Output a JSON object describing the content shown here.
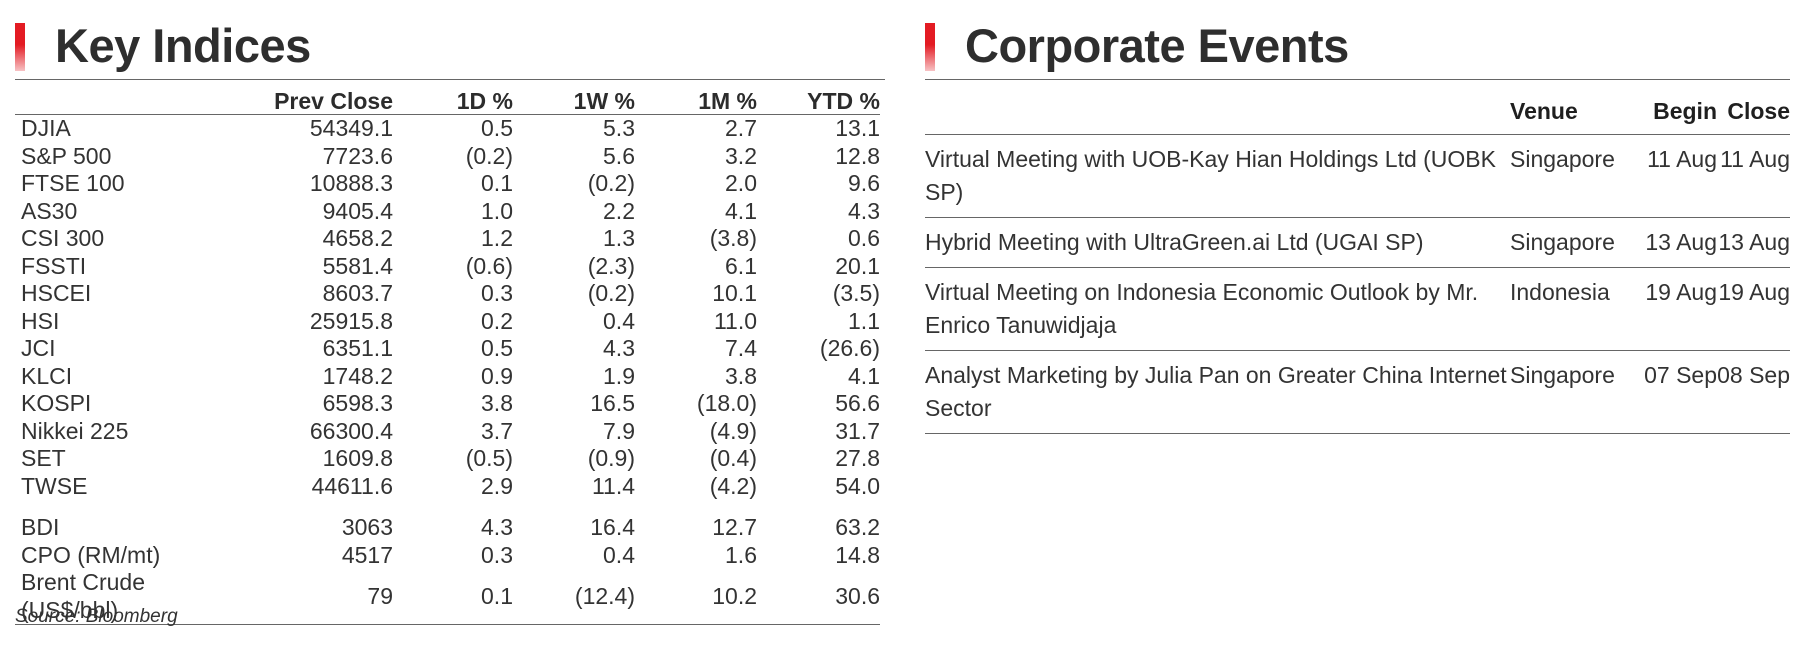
{
  "key_indices": {
    "title": "Key Indices",
    "columns": [
      "",
      "Prev Close",
      "1D %",
      "1W %",
      "1M %",
      "YTD %"
    ],
    "rows": [
      {
        "name": "DJIA",
        "prev_close": "54349.1",
        "d1": "0.5",
        "w1": "5.3",
        "m1": "2.7",
        "ytd": "13.1"
      },
      {
        "name": "S&P 500",
        "prev_close": "7723.6",
        "d1": "(0.2)",
        "w1": "5.6",
        "m1": "3.2",
        "ytd": "12.8"
      },
      {
        "name": "FTSE 100",
        "prev_close": "10888.3",
        "d1": "0.1",
        "w1": "(0.2)",
        "m1": "2.0",
        "ytd": "9.6"
      },
      {
        "name": "AS30",
        "prev_close": "9405.4",
        "d1": "1.0",
        "w1": "2.2",
        "m1": "4.1",
        "ytd": "4.3"
      },
      {
        "name": "CSI 300",
        "prev_close": "4658.2",
        "d1": "1.2",
        "w1": "1.3",
        "m1": "(3.8)",
        "ytd": "0.6"
      },
      {
        "name": "FSSTI",
        "prev_close": "5581.4",
        "d1": "(0.6)",
        "w1": "(2.3)",
        "m1": "6.1",
        "ytd": "20.1"
      },
      {
        "name": "HSCEI",
        "prev_close": "8603.7",
        "d1": "0.3",
        "w1": "(0.2)",
        "m1": "10.1",
        "ytd": "(3.5)"
      },
      {
        "name": "HSI",
        "prev_close": "25915.8",
        "d1": "0.2",
        "w1": "0.4",
        "m1": "11.0",
        "ytd": "1.1"
      },
      {
        "name": "JCI",
        "prev_close": "6351.1",
        "d1": "0.5",
        "w1": "4.3",
        "m1": "7.4",
        "ytd": "(26.6)"
      },
      {
        "name": "KLCI",
        "prev_close": "1748.2",
        "d1": "0.9",
        "w1": "1.9",
        "m1": "3.8",
        "ytd": "4.1"
      },
      {
        "name": "KOSPI",
        "prev_close": "6598.3",
        "d1": "3.8",
        "w1": "16.5",
        "m1": "(18.0)",
        "ytd": "56.6"
      },
      {
        "name": "Nikkei 225",
        "prev_close": "66300.4",
        "d1": "3.7",
        "w1": "7.9",
        "m1": "(4.9)",
        "ytd": "31.7"
      },
      {
        "name": "SET",
        "prev_close": "1609.8",
        "d1": "(0.5)",
        "w1": "(0.9)",
        "m1": "(0.4)",
        "ytd": "27.8"
      },
      {
        "name": "TWSE",
        "prev_close": "44611.6",
        "d1": "2.9",
        "w1": "11.4",
        "m1": "(4.2)",
        "ytd": "54.0"
      }
    ],
    "commodity_rows": [
      {
        "name": "BDI",
        "prev_close": "3063",
        "d1": "4.3",
        "w1": "16.4",
        "m1": "12.7",
        "ytd": "63.2"
      },
      {
        "name": "CPO (RM/mt)",
        "prev_close": "4517",
        "d1": "0.3",
        "w1": "0.4",
        "m1": "1.6",
        "ytd": "14.8"
      },
      {
        "name": "Brent Crude (US$/bbl)",
        "prev_close": "79",
        "d1": "0.1",
        "w1": "(12.4)",
        "m1": "10.2",
        "ytd": "30.6"
      }
    ],
    "source": "Source: Bloomberg"
  },
  "corporate_events": {
    "title": "Corporate Events",
    "columns": [
      "",
      "Venue",
      "Begin",
      "Close"
    ],
    "rows": [
      {
        "event": "Virtual Meeting with UOB-Kay Hian Holdings Ltd (UOBK SP)",
        "venue": "Singapore",
        "begin": "11 Aug",
        "close": "11 Aug"
      },
      {
        "event": "Hybrid Meeting with UltraGreen.ai Ltd (UGAI SP)",
        "venue": "Singapore",
        "begin": "13 Aug",
        "close": "13 Aug"
      },
      {
        "event": "Virtual Meeting on Indonesia Economic Outlook by Mr. Enrico Tanuwidjaja",
        "venue": "Indonesia",
        "begin": "19 Aug",
        "close": "19 Aug"
      },
      {
        "event": "Analyst Marketing by Julia Pan on Greater China Internet Sector",
        "venue": "Singapore",
        "begin": "07 Sep",
        "close": "08 Sep"
      }
    ]
  },
  "colors": {
    "accent": "#e31b23",
    "text": "#333333",
    "rule": "#666666"
  }
}
